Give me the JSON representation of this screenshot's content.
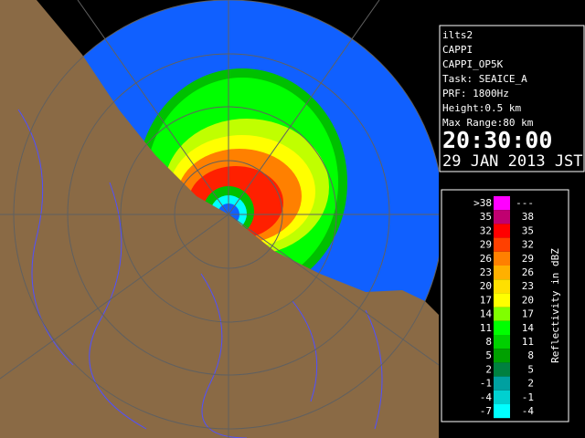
{
  "info": {
    "lines": [
      "ilts2",
      "CAPPI",
      "CAPPI_OP5K",
      "Task: SEAICE_A",
      "PRF: 1800Hz",
      "Height:0.5 km",
      "Max Range:80 km"
    ],
    "time": "20:30:00",
    "date": "29 JAN 2013 JST"
  },
  "legend": {
    "title": "Reflectivity in dBZ",
    "rows": [
      {
        "low": ">38",
        "high": "---",
        "color": "#ff00ff"
      },
      {
        "low": "35",
        "high": "38",
        "color": "#c00070"
      },
      {
        "low": "32",
        "high": "35",
        "color": "#ff0000"
      },
      {
        "low": "29",
        "high": "32",
        "color": "#ff4000"
      },
      {
        "low": "26",
        "high": "29",
        "color": "#ff8000"
      },
      {
        "low": "23",
        "high": "26",
        "color": "#ffb000"
      },
      {
        "low": "20",
        "high": "23",
        "color": "#ffe000"
      },
      {
        "low": "17",
        "high": "20",
        "color": "#ffff00"
      },
      {
        "low": "14",
        "high": "17",
        "color": "#80ff00"
      },
      {
        "low": "11",
        "high": "14",
        "color": "#00ff00"
      },
      {
        "low": "8",
        "high": "11",
        "color": "#00d000"
      },
      {
        "low": "5",
        "high": "8",
        "color": "#00a000"
      },
      {
        "low": "2",
        "high": "5",
        "color": "#008040"
      },
      {
        "low": "-1",
        "high": "2",
        "color": "#00a0a0"
      },
      {
        "low": "-4",
        "high": "-1",
        "color": "#00d0d0"
      },
      {
        "low": "-7",
        "high": "-4",
        "color": "#00ffff"
      }
    ]
  }
}
